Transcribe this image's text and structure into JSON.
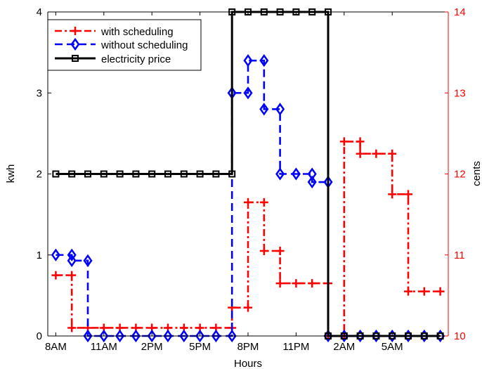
{
  "chart_data": {
    "type": "line",
    "subtype": "step",
    "xlabel": "Hours",
    "ylabel_left": "kwh",
    "ylabel_right": "cents",
    "x_tick_labels": [
      "8AM",
      "11AM",
      "2PM",
      "5PM",
      "8PM",
      "11PM",
      "2AM",
      "5AM"
    ],
    "x_tick_hours": [
      0,
      3,
      6,
      9,
      12,
      15,
      18,
      21
    ],
    "xlim": [
      -0.5,
      24.5
    ],
    "y_left_ticks": [
      "0",
      "1",
      "2",
      "3",
      "4"
    ],
    "y_left_lim": [
      0,
      4
    ],
    "y_right_ticks": [
      "10",
      "11",
      "12",
      "13",
      "14"
    ],
    "y_right_lim": [
      10,
      14
    ],
    "grid": false,
    "legend_position": "top-left",
    "x": [
      0,
      1,
      2,
      3,
      4,
      5,
      6,
      7,
      8,
      9,
      10,
      11,
      12,
      13,
      14,
      15,
      16,
      17,
      18,
      19,
      20,
      21,
      22,
      23,
      24
    ],
    "series": [
      {
        "name": "with scheduling",
        "axis": "left",
        "color": "#ff0000",
        "line_style": "dash-dot",
        "marker": "plus",
        "steps": [
          [
            0,
            0.75
          ],
          [
            1,
            0.75
          ],
          [
            1,
            0.1
          ],
          [
            2,
            0.1
          ],
          [
            3,
            0.1
          ],
          [
            4,
            0.1
          ],
          [
            5,
            0.1
          ],
          [
            6,
            0.1
          ],
          [
            7,
            0.1
          ],
          [
            8,
            0.1
          ],
          [
            9,
            0.1
          ],
          [
            10,
            0.1
          ],
          [
            11,
            0.1
          ],
          [
            11,
            0.35
          ],
          [
            12,
            0.35
          ],
          [
            12,
            1.65
          ],
          [
            13,
            1.65
          ],
          [
            13,
            1.05
          ],
          [
            14,
            1.05
          ],
          [
            14,
            0.65
          ],
          [
            15,
            0.65
          ],
          [
            16,
            0.65
          ],
          [
            17,
            0.65
          ],
          [
            17,
            0.0
          ],
          [
            18,
            0.0
          ],
          [
            18,
            2.4
          ],
          [
            19,
            2.4
          ],
          [
            19,
            2.25
          ],
          [
            20,
            2.25
          ],
          [
            21,
            2.25
          ],
          [
            21,
            1.75
          ],
          [
            22,
            1.75
          ],
          [
            22,
            0.55
          ],
          [
            23,
            0.55
          ],
          [
            24,
            0.55
          ]
        ]
      },
      {
        "name": "without scheduling",
        "axis": "left",
        "color": "#0000ff",
        "line_style": "dash",
        "marker": "diamond",
        "steps": [
          [
            0,
            1.0
          ],
          [
            1,
            1.0
          ],
          [
            1,
            0.93
          ],
          [
            2,
            0.93
          ],
          [
            2,
            0.0
          ],
          [
            3,
            0.0
          ],
          [
            4,
            0.0
          ],
          [
            5,
            0.0
          ],
          [
            6,
            0.0
          ],
          [
            7,
            0.0
          ],
          [
            8,
            0.0
          ],
          [
            9,
            0.0
          ],
          [
            10,
            0.0
          ],
          [
            11,
            0.0
          ],
          [
            11,
            3.0
          ],
          [
            12,
            3.0
          ],
          [
            12,
            3.4
          ],
          [
            13,
            3.4
          ],
          [
            13,
            2.8
          ],
          [
            14,
            2.8
          ],
          [
            14,
            2.0
          ],
          [
            15,
            2.0
          ],
          [
            16,
            2.0
          ],
          [
            16,
            1.9
          ],
          [
            17,
            1.9
          ],
          [
            17,
            0.0
          ],
          [
            18,
            0.0
          ],
          [
            19,
            0.0
          ],
          [
            20,
            0.0
          ],
          [
            21,
            0.0
          ],
          [
            22,
            0.0
          ],
          [
            23,
            0.0
          ],
          [
            24,
            0.0
          ]
        ]
      },
      {
        "name": "electricity price",
        "axis": "right",
        "color": "#000000",
        "line_style": "solid",
        "marker": "square",
        "steps": [
          [
            0,
            12
          ],
          [
            1,
            12
          ],
          [
            2,
            12
          ],
          [
            3,
            12
          ],
          [
            4,
            12
          ],
          [
            5,
            12
          ],
          [
            6,
            12
          ],
          [
            7,
            12
          ],
          [
            8,
            12
          ],
          [
            9,
            12
          ],
          [
            10,
            12
          ],
          [
            11,
            12
          ],
          [
            11,
            14
          ],
          [
            12,
            14
          ],
          [
            13,
            14
          ],
          [
            14,
            14
          ],
          [
            15,
            14
          ],
          [
            16,
            14
          ],
          [
            17,
            14
          ],
          [
            17,
            10
          ],
          [
            18,
            10
          ],
          [
            19,
            10
          ],
          [
            20,
            10
          ],
          [
            21,
            10
          ],
          [
            22,
            10
          ],
          [
            23,
            10
          ],
          [
            24,
            10
          ]
        ]
      }
    ]
  }
}
